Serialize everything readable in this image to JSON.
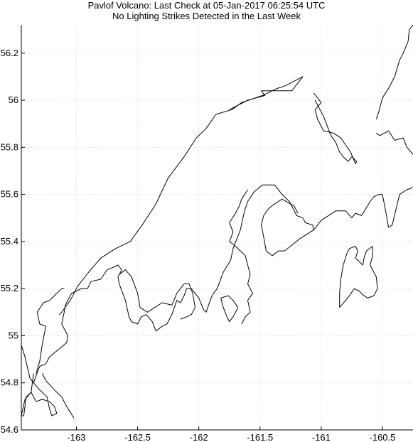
{
  "title": {
    "line1": "Pavlof Volcano: Last Check at 05-Jan-2017 06:25:54 UTC",
    "line2": "No Lighting Strikes Detected in the Last Week"
  },
  "colors": {
    "coastline": "#000000",
    "grid": "#c8c8c8",
    "background": "#ffffff"
  },
  "chart_data": {
    "type": "map",
    "grid": true,
    "xlim": [
      -163.45,
      -160.25
    ],
    "ylim": [
      54.6,
      56.32
    ],
    "x_ticks": [
      {
        "value": -163,
        "label": "-163"
      },
      {
        "value": -162.5,
        "label": "-162.5"
      },
      {
        "value": -162,
        "label": "-162"
      },
      {
        "value": -161.5,
        "label": "-161.5"
      },
      {
        "value": -161,
        "label": "-161"
      },
      {
        "value": -160.5,
        "label": "-160.5"
      }
    ],
    "y_ticks": [
      {
        "value": 54.6,
        "label": "54.6"
      },
      {
        "value": 54.8,
        "label": "54.8"
      },
      {
        "value": 55,
        "label": "55"
      },
      {
        "value": 55.2,
        "label": "55.2"
      },
      {
        "value": 55.4,
        "label": "55.4"
      },
      {
        "value": 55.6,
        "label": "55.6"
      },
      {
        "value": 55.8,
        "label": "55.8"
      },
      {
        "value": 56,
        "label": "56"
      },
      {
        "value": 56.2,
        "label": "56.2"
      }
    ],
    "coastlines": [
      {
        "name": "north-coast",
        "points": [
          [
            -163.14,
            55.09
          ],
          [
            -163.12,
            55.1
          ],
          [
            -163.05,
            55.15
          ],
          [
            -162.99,
            55.21
          ],
          [
            -162.9,
            55.27
          ],
          [
            -162.8,
            55.33
          ],
          [
            -162.68,
            55.37
          ],
          [
            -162.56,
            55.4
          ],
          [
            -162.45,
            55.48
          ],
          [
            -162.35,
            55.56
          ],
          [
            -162.25,
            55.67
          ],
          [
            -162.12,
            55.76
          ],
          [
            -162.02,
            55.84
          ],
          [
            -161.94,
            55.88
          ],
          [
            -161.86,
            55.94
          ],
          [
            -161.73,
            55.96
          ],
          [
            -161.65,
            55.99
          ],
          [
            -161.48,
            56.02
          ],
          [
            -161.36,
            56.05
          ],
          [
            -161.3,
            56.06
          ],
          [
            -161.15,
            56.1
          ],
          [
            -161.24,
            56.04
          ],
          [
            -161.4,
            56.04
          ],
          [
            -161.49,
            56.04
          ],
          [
            -161.46,
            56.02
          ],
          [
            -161.6,
            56.0
          ],
          [
            -161.75,
            55.96
          ]
        ]
      },
      {
        "name": "main-peninsula-south",
        "points": [
          [
            -163.45,
            54.96
          ],
          [
            -163.42,
            54.91
          ],
          [
            -163.38,
            54.82
          ],
          [
            -163.35,
            54.8
          ],
          [
            -163.3,
            54.87
          ],
          [
            -163.25,
            54.88
          ],
          [
            -163.22,
            54.91
          ],
          [
            -163.15,
            54.94
          ],
          [
            -163.08,
            54.97
          ],
          [
            -163.07,
            55.0
          ],
          [
            -163.12,
            55.05
          ],
          [
            -163.1,
            55.1
          ],
          [
            -163.09,
            55.13
          ],
          [
            -163.07,
            55.15
          ],
          [
            -163.04,
            55.18
          ],
          [
            -163.0,
            55.19
          ],
          [
            -162.96,
            55.2
          ],
          [
            -162.91,
            55.2
          ],
          [
            -162.88,
            55.23
          ],
          [
            -162.8,
            55.24
          ],
          [
            -162.75,
            55.28
          ],
          [
            -162.7,
            55.29
          ],
          [
            -162.66,
            55.3
          ],
          [
            -162.63,
            55.28
          ],
          [
            -162.66,
            55.25
          ],
          [
            -162.65,
            55.22
          ],
          [
            -162.6,
            55.15
          ],
          [
            -162.57,
            55.08
          ],
          [
            -162.55,
            55.06
          ],
          [
            -162.5,
            55.05
          ],
          [
            -162.47,
            55.08
          ],
          [
            -162.43,
            55.09
          ],
          [
            -162.38,
            55.06
          ],
          [
            -162.35,
            55.02
          ],
          [
            -162.3,
            55.04
          ],
          [
            -162.26,
            55.05
          ],
          [
            -162.22,
            55.09
          ],
          [
            -162.18,
            55.15
          ],
          [
            -162.15,
            55.14
          ],
          [
            -162.12,
            55.17
          ],
          [
            -162.1,
            55.2
          ],
          [
            -162.06,
            55.2
          ],
          [
            -162.0,
            55.16
          ],
          [
            -161.96,
            55.11
          ],
          [
            -161.94,
            55.1
          ],
          [
            -161.92,
            55.13
          ],
          [
            -161.9,
            55.16
          ],
          [
            -161.88,
            55.18
          ],
          [
            -161.85,
            55.2
          ],
          [
            -161.8,
            55.27
          ],
          [
            -161.74,
            55.32
          ],
          [
            -161.72,
            55.37
          ],
          [
            -161.69,
            55.41
          ],
          [
            -161.66,
            55.45
          ],
          [
            -161.64,
            55.5
          ],
          [
            -161.62,
            55.54
          ],
          [
            -161.6,
            55.57
          ],
          [
            -161.55,
            55.61
          ],
          [
            -161.48,
            55.64
          ],
          [
            -161.38,
            55.64
          ],
          [
            -161.32,
            55.6
          ],
          [
            -161.26,
            55.57
          ],
          [
            -161.2,
            55.51
          ],
          [
            -161.15,
            55.5
          ],
          [
            -161.13,
            55.48
          ],
          [
            -161.07,
            55.47
          ],
          [
            -161.06,
            55.45
          ],
          [
            -161.12,
            55.43
          ],
          [
            -161.18,
            55.41
          ],
          [
            -161.25,
            55.38
          ],
          [
            -161.3,
            55.36
          ],
          [
            -161.35,
            55.36
          ],
          [
            -161.4,
            55.34
          ],
          [
            -161.45,
            55.36
          ],
          [
            -161.47,
            55.42
          ],
          [
            -161.49,
            55.47
          ],
          [
            -161.47,
            55.51
          ],
          [
            -161.43,
            55.54
          ],
          [
            -161.38,
            55.56
          ],
          [
            -161.32,
            55.58
          ],
          [
            -161.22,
            55.55
          ],
          [
            -161.19,
            55.52
          ]
        ]
      },
      {
        "name": "east-coast",
        "points": [
          [
            -161.06,
            55.45
          ],
          [
            -161.0,
            55.49
          ],
          [
            -160.94,
            55.51
          ],
          [
            -160.88,
            55.53
          ],
          [
            -160.8,
            55.53
          ],
          [
            -160.75,
            55.5
          ],
          [
            -160.72,
            55.52
          ],
          [
            -160.67,
            55.51
          ],
          [
            -160.6,
            55.57
          ],
          [
            -160.57,
            55.59
          ],
          [
            -160.53,
            55.6
          ],
          [
            -160.5,
            55.6
          ],
          [
            -160.47,
            55.52
          ],
          [
            -160.45,
            55.46
          ],
          [
            -160.42,
            55.47
          ],
          [
            -160.36,
            55.6
          ],
          [
            -160.3,
            55.62
          ],
          [
            -160.25,
            55.63
          ]
        ]
      },
      {
        "name": "northeast-coast",
        "points": [
          [
            -161.05,
            56.0
          ],
          [
            -160.98,
            55.93
          ],
          [
            -160.92,
            55.85
          ],
          [
            -160.88,
            55.82
          ],
          [
            -160.85,
            55.78
          ],
          [
            -160.82,
            55.76
          ],
          [
            -160.8,
            55.75
          ],
          [
            -160.78,
            55.74
          ],
          [
            -160.75,
            55.76
          ],
          [
            -160.71,
            55.74
          ],
          [
            -160.72,
            55.73
          ],
          [
            -160.76,
            55.78
          ],
          [
            -160.84,
            55.84
          ],
          [
            -160.9,
            55.86
          ],
          [
            -160.98,
            55.87
          ],
          [
            -161.03,
            55.92
          ],
          [
            -161.05,
            55.96
          ],
          [
            -161.0,
            55.99
          ],
          [
            -161.06,
            56.03
          ]
        ]
      },
      {
        "name": "northeast-shore",
        "points": [
          [
            -160.55,
            55.92
          ],
          [
            -160.53,
            55.95
          ],
          [
            -160.5,
            56.01
          ],
          [
            -160.45,
            56.05
          ],
          [
            -160.4,
            56.1
          ],
          [
            -160.36,
            56.17
          ],
          [
            -160.33,
            56.2
          ],
          [
            -160.29,
            56.25
          ],
          [
            -160.28,
            56.3
          ],
          [
            -160.25,
            56.32
          ]
        ]
      },
      {
        "name": "east-shore-2",
        "points": [
          [
            -160.55,
            55.86
          ],
          [
            -160.52,
            55.85
          ],
          [
            -160.45,
            55.87
          ],
          [
            -160.4,
            55.83
          ],
          [
            -160.33,
            55.84
          ],
          [
            -160.3,
            55.8
          ],
          [
            -160.25,
            55.77
          ]
        ]
      },
      {
        "name": "sanak-islands",
        "points": [
          [
            -160.58,
            55.38
          ],
          [
            -160.63,
            55.36
          ],
          [
            -160.65,
            55.33
          ],
          [
            -160.66,
            55.3
          ],
          [
            -160.68,
            55.31
          ],
          [
            -160.7,
            55.32
          ],
          [
            -160.72,
            55.33
          ],
          [
            -160.7,
            55.36
          ],
          [
            -160.72,
            55.38
          ],
          [
            -160.77,
            55.37
          ],
          [
            -160.79,
            55.35
          ],
          [
            -160.82,
            55.3
          ],
          [
            -160.84,
            55.24
          ],
          [
            -160.85,
            55.18
          ],
          [
            -160.85,
            55.12
          ],
          [
            -160.8,
            55.15
          ],
          [
            -160.77,
            55.17
          ],
          [
            -160.73,
            55.2
          ],
          [
            -160.69,
            55.19
          ],
          [
            -160.65,
            55.17
          ],
          [
            -160.62,
            55.16
          ],
          [
            -160.57,
            55.17
          ],
          [
            -160.54,
            55.2
          ],
          [
            -160.55,
            55.25
          ],
          [
            -160.6,
            55.3
          ],
          [
            -160.58,
            55.34
          ],
          [
            -160.58,
            55.38
          ]
        ]
      },
      {
        "name": "southwest-islands",
        "points": [
          [
            -163.35,
            54.84
          ],
          [
            -163.37,
            54.76
          ],
          [
            -163.42,
            54.73
          ],
          [
            -163.45,
            54.66
          ],
          [
            -163.43,
            54.66
          ],
          [
            -163.41,
            54.74
          ],
          [
            -163.37,
            54.76
          ],
          [
            -163.33,
            54.72
          ],
          [
            -163.28,
            54.73
          ],
          [
            -163.22,
            54.72
          ],
          [
            -163.18,
            54.7
          ],
          [
            -163.16,
            54.67
          ],
          [
            -163.2,
            54.66
          ],
          [
            -163.22,
            54.69
          ],
          [
            -163.24,
            54.74
          ],
          [
            -163.3,
            54.77
          ],
          [
            -163.35,
            54.8
          ]
        ]
      },
      {
        "name": "southwest-islands-2",
        "points": [
          [
            -163.28,
            54.84
          ],
          [
            -163.25,
            54.81
          ],
          [
            -163.18,
            54.77
          ],
          [
            -163.12,
            54.74
          ],
          [
            -163.08,
            54.7
          ],
          [
            -163.02,
            54.65
          ]
        ]
      },
      {
        "name": "unga-island",
        "points": [
          [
            -163.33,
            54.84
          ],
          [
            -163.3,
            54.89
          ],
          [
            -163.28,
            54.96
          ],
          [
            -163.25,
            55.04
          ],
          [
            -163.3,
            55.05
          ],
          [
            -163.32,
            55.1
          ],
          [
            -163.27,
            55.14
          ],
          [
            -163.22,
            55.15
          ],
          [
            -163.18,
            55.17
          ],
          [
            -163.12,
            55.2
          ],
          [
            -163.1,
            55.2
          ]
        ]
      },
      {
        "name": "inner-bay-islands",
        "points": [
          [
            -161.8,
            55.12
          ],
          [
            -161.82,
            55.16
          ],
          [
            -161.76,
            55.17
          ],
          [
            -161.72,
            55.15
          ],
          [
            -161.68,
            55.12
          ],
          [
            -161.72,
            55.08
          ],
          [
            -161.75,
            55.06
          ],
          [
            -161.77,
            55.08
          ],
          [
            -161.8,
            55.12
          ]
        ]
      },
      {
        "name": "mid-bay-islands",
        "points": [
          [
            -162.65,
            55.26
          ],
          [
            -162.6,
            55.28
          ],
          [
            -162.55,
            55.25
          ],
          [
            -162.5,
            55.18
          ],
          [
            -162.48,
            55.12
          ],
          [
            -162.42,
            55.1
          ],
          [
            -162.36,
            55.12
          ],
          [
            -162.3,
            55.14
          ],
          [
            -162.22,
            55.13
          ],
          [
            -162.18,
            55.18
          ],
          [
            -162.12,
            55.22
          ],
          [
            -162.08,
            55.22
          ],
          [
            -162.05,
            55.18
          ],
          [
            -162.03,
            55.12
          ],
          [
            -162.06,
            55.09
          ],
          [
            -162.1,
            55.08
          ],
          [
            -162.15,
            55.07
          ]
        ]
      },
      {
        "name": "east-bay-islands",
        "points": [
          [
            -161.6,
            55.62
          ],
          [
            -161.65,
            55.58
          ],
          [
            -161.67,
            55.55
          ],
          [
            -161.7,
            55.52
          ],
          [
            -161.75,
            55.48
          ],
          [
            -161.72,
            55.44
          ],
          [
            -161.75,
            55.4
          ],
          [
            -161.7,
            55.38
          ],
          [
            -161.66,
            55.36
          ],
          [
            -161.62,
            55.34
          ],
          [
            -161.6,
            55.3
          ],
          [
            -161.58,
            55.26
          ],
          [
            -161.6,
            55.22
          ],
          [
            -161.56,
            55.18
          ],
          [
            -161.6,
            55.15
          ],
          [
            -161.58,
            55.1
          ],
          [
            -161.62,
            55.08
          ],
          [
            -161.65,
            55.05
          ]
        ]
      }
    ]
  }
}
